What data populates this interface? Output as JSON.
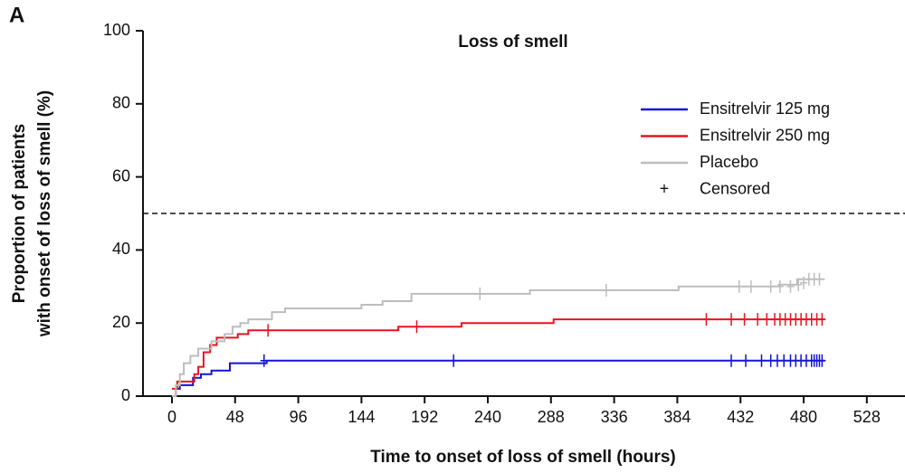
{
  "chart_data": {
    "type": "step",
    "panel": "A",
    "title": "Loss of smell",
    "xlabel": "Time to onset of loss of smell (hours)",
    "ylabel": [
      "Proportion of patients",
      "with onset of loss of smell (%)"
    ],
    "xlim": [
      -22,
      557
    ],
    "ylim": [
      0,
      100
    ],
    "xticks": [
      0,
      48,
      96,
      144,
      192,
      240,
      288,
      336,
      384,
      432,
      480,
      528
    ],
    "yticks": [
      0,
      20,
      40,
      60,
      80,
      100
    ],
    "reference_line": 50,
    "censored_label": "Censored",
    "censored_symbol": "+",
    "series": [
      {
        "name": "Ensitrelvir 125 mg",
        "color": "#1414d8",
        "x": [
          0,
          3,
          6,
          16,
          22,
          30,
          44,
          72,
          496
        ],
        "values": [
          0,
          2,
          3,
          5,
          6,
          7,
          9,
          9.7,
          9.7
        ],
        "censored_x": [
          70,
          214,
          425,
          436,
          448,
          455,
          460,
          465,
          470,
          474,
          478,
          482,
          486,
          488,
          490,
          492,
          494
        ],
        "censored_values": [
          9.7,
          9.7,
          9.7,
          9.7,
          9.7,
          9.7,
          9.7,
          9.7,
          9.7,
          9.7,
          9.7,
          9.7,
          9.7,
          9.7,
          9.7,
          9.7,
          9.7
        ]
      },
      {
        "name": "Ensitrelvir 250 mg",
        "color": "#e8141e",
        "x": [
          0,
          4,
          17,
          20,
          24,
          29,
          34,
          50,
          58,
          172,
          220,
          290,
          496
        ],
        "values": [
          2,
          4,
          6,
          8,
          12,
          14,
          16,
          17,
          18,
          19,
          20,
          21,
          21
        ],
        "censored_x": [
          73,
          186,
          406,
          425,
          435,
          445,
          452,
          458,
          462,
          466,
          470,
          474,
          478,
          482,
          486,
          490,
          494
        ],
        "censored_values": [
          18,
          19,
          21,
          21,
          21,
          21,
          21,
          21,
          21,
          21,
          21,
          21,
          21,
          21,
          21,
          21,
          21
        ]
      },
      {
        "name": "Placebo",
        "color": "#bdbdbd",
        "x": [
          0,
          3,
          6,
          9,
          14,
          20,
          30,
          40,
          46,
          52,
          58,
          76,
          86,
          144,
          160,
          182,
          272,
          385,
          461,
          475,
          496
        ],
        "values": [
          0,
          3,
          6,
          9,
          11,
          13,
          15,
          17,
          19,
          20,
          21,
          23,
          24,
          25,
          26,
          28,
          29,
          30,
          30.5,
          32,
          32
        ],
        "censored_x": [
          234,
          330,
          431,
          440,
          455,
          462,
          470,
          476,
          480,
          484,
          488,
          492
        ],
        "censored_values": [
          28,
          29,
          30,
          30,
          30,
          30,
          30,
          30.5,
          31,
          32,
          32,
          32
        ]
      }
    ]
  }
}
